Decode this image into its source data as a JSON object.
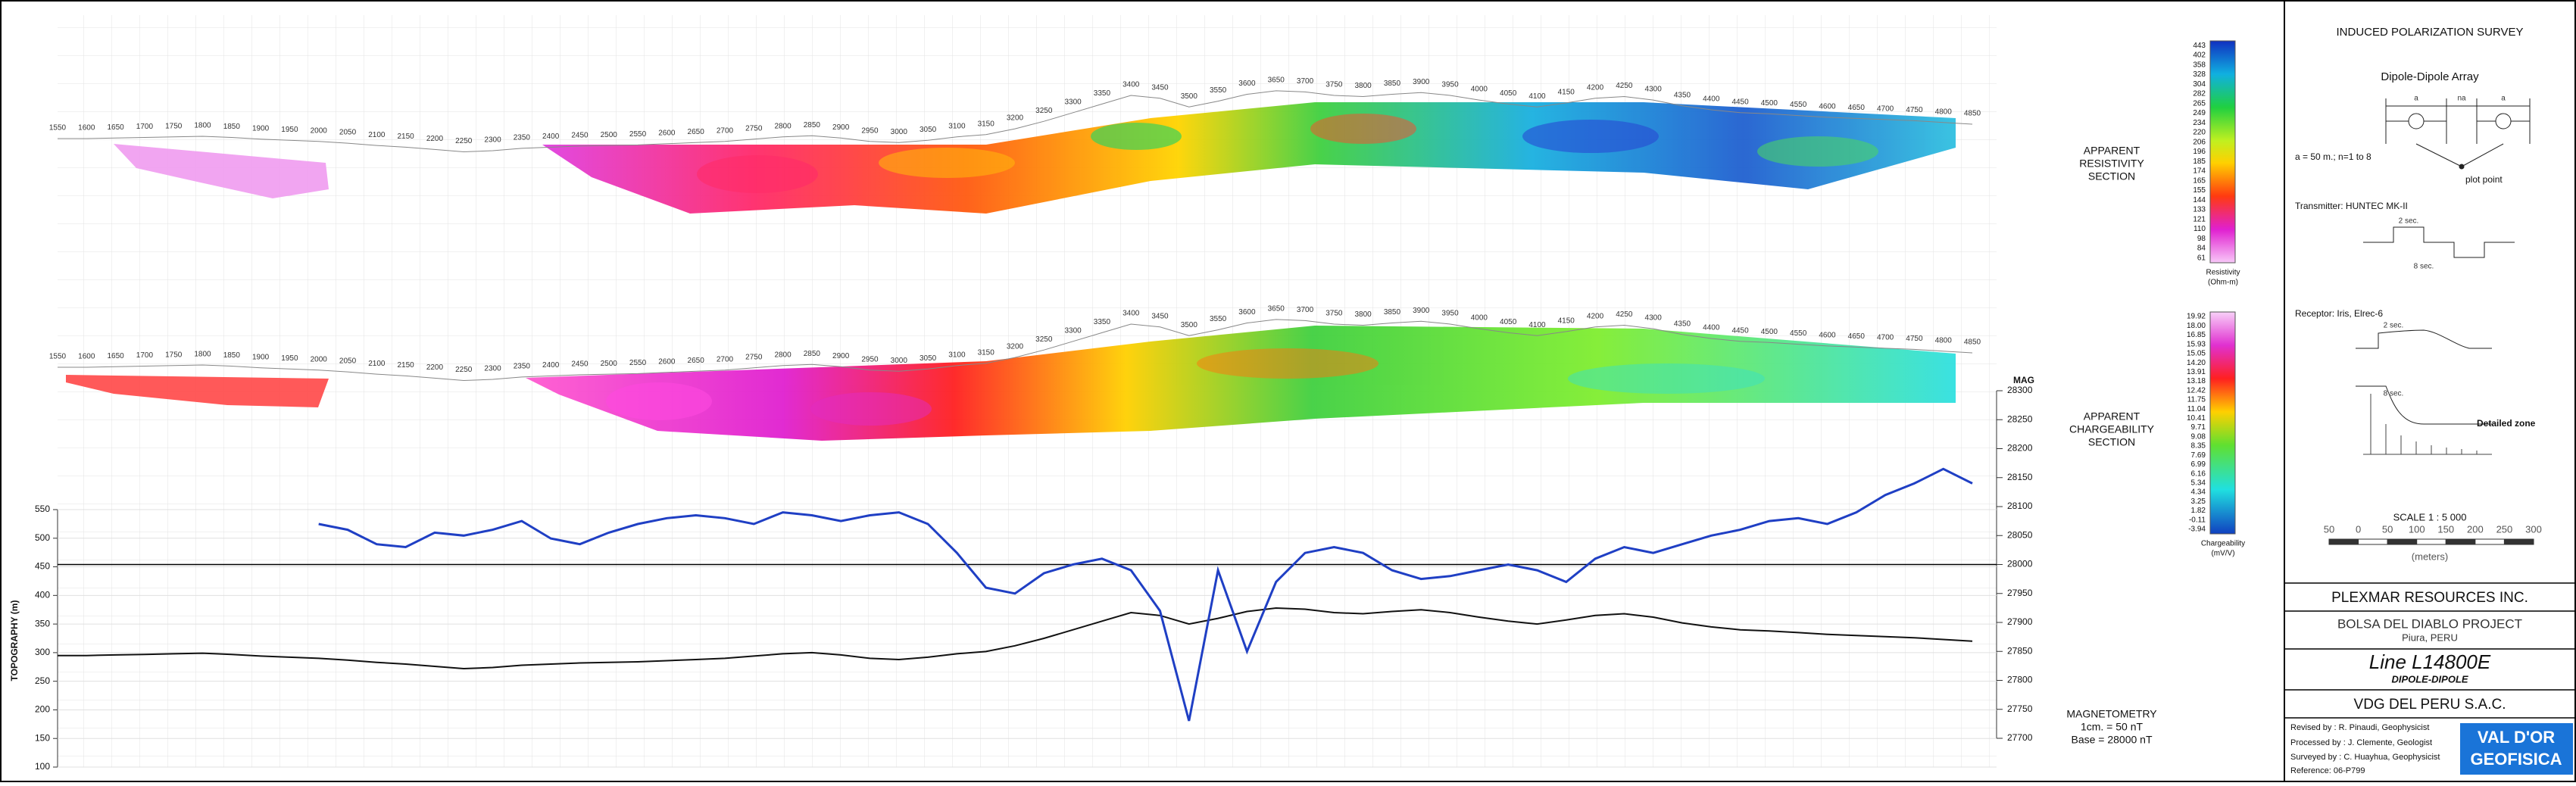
{
  "chart_data": {
    "type": "line",
    "x": [
      1550,
      1600,
      1650,
      1700,
      1750,
      1800,
      1850,
      1900,
      1950,
      2000,
      2050,
      2100,
      2150,
      2200,
      2250,
      2300,
      2350,
      2400,
      2450,
      2500,
      2550,
      2600,
      2650,
      2700,
      2750,
      2800,
      2850,
      2900,
      2950,
      3000,
      3050,
      3100,
      3150,
      3200,
      3250,
      3300,
      3350,
      3400,
      3450,
      3500,
      3550,
      3600,
      3650,
      3700,
      3750,
      3800,
      3850,
      3900,
      3950,
      4000,
      4050,
      4100,
      4150,
      4200,
      4250,
      4300,
      4350,
      4400,
      4450,
      4500,
      4550,
      4600,
      4650,
      4700,
      4750,
      4800,
      4850
    ],
    "xlim": [
      1550,
      4850
    ],
    "ylim": [
      100,
      550
    ],
    "yticks": [
      100,
      150,
      200,
      250,
      300,
      350,
      400,
      450,
      500,
      550
    ],
    "y2lim": [
      27700,
      28300
    ],
    "y2ticks": [
      27700,
      27750,
      27800,
      27850,
      27900,
      27950,
      28000,
      28050,
      28100,
      28150,
      28200,
      28250,
      28300
    ],
    "ylabel": "TOPOGRAPHY (m)",
    "y2label": "MAG",
    "grid": true,
    "base_nT": 28000,
    "series": [
      {
        "color": "#111111",
        "values": [
          295,
          295,
          296,
          297,
          298,
          299,
          297,
          294,
          292,
          290,
          287,
          283,
          280,
          276,
          272,
          274,
          278,
          280,
          282,
          283,
          284,
          286,
          288,
          290,
          294,
          298,
          300,
          296,
          290,
          288,
          292,
          298,
          302,
          312,
          325,
          340,
          355,
          370,
          365,
          350,
          360,
          372,
          378,
          376,
          370,
          368,
          372,
          375,
          370,
          362,
          355,
          350,
          357,
          365,
          368,
          362,
          352,
          345,
          340,
          338,
          335,
          332,
          330,
          328,
          326,
          323,
          320
        ]
      },
      {
        "color": "#1f3fc4",
        "axis": "y2",
        "values": [
          null,
          null,
          null,
          null,
          null,
          null,
          null,
          null,
          null,
          28070,
          28060,
          28035,
          28030,
          28055,
          28050,
          28060,
          28075,
          28045,
          28035,
          28055,
          28070,
          28080,
          28085,
          28080,
          28070,
          28090,
          28085,
          28075,
          28085,
          28090,
          28070,
          28020,
          27960,
          27950,
          27985,
          28000,
          28010,
          27990,
          27920,
          27730,
          27990,
          27850,
          27970,
          28020,
          28030,
          28020,
          27990,
          27975,
          27980,
          27990,
          28000,
          27990,
          27970,
          28010,
          28030,
          28020,
          28035,
          28050,
          28060,
          28075,
          28080,
          28070,
          28090,
          28120,
          28140,
          28165,
          28140
        ]
      }
    ]
  },
  "sections": {
    "resistivity": {
      "label": [
        "APPARENT",
        "RESISTIVITY",
        "SECTION"
      ],
      "scale": [
        "443",
        "402",
        "358",
        "328",
        "304",
        "282",
        "265",
        "249",
        "234",
        "220",
        "206",
        "196",
        "185",
        "174",
        "165",
        "155",
        "144",
        "133",
        "121",
        "110",
        "98",
        "84",
        "61"
      ],
      "unit": [
        "Resistivity",
        "(Ohm-m)"
      ]
    },
    "chargeability": {
      "label": [
        "APPARENT",
        "CHARGEABILITY",
        "SECTION"
      ],
      "scale": [
        "19.92",
        "18.00",
        "16.85",
        "15.93",
        "15.05",
        "14.20",
        "13.91",
        "13.18",
        "12.42",
        "11.75",
        "11.04",
        "10.41",
        "9.71",
        "9.08",
        "8.35",
        "7.69",
        "6.99",
        "6.16",
        "5.34",
        "4.34",
        "3.25",
        "1.82",
        "-0.11",
        "-3.94"
      ],
      "unit": [
        "Chargeability",
        "(mV/V)"
      ]
    },
    "magnetometry": {
      "label": [
        "MAGNETOMETRY",
        "1cm. = 50 nT",
        "Base = 28000 nT"
      ]
    }
  },
  "title_block": {
    "survey": "INDUCED POLARIZATION SURVEY",
    "array": "Dipole-Dipole Array",
    "array_labels": [
      "a",
      "na",
      "a"
    ],
    "spacing": "a = 50 m.; n=1 to 8",
    "plot_point": "plot point",
    "transmitter": "Transmitter: HUNTEC MK-II",
    "tx_on": "2 sec.",
    "tx_period": "8 sec.",
    "receptor": "Receptor: Iris, Elrec-6",
    "rx_on": "2 sec.",
    "rx_period": "8 sec.",
    "detailed_zone": "Detailed zone",
    "scale": "SCALE 1 : 5 000",
    "scale_ticks": [
      "50",
      "0",
      "50",
      "100",
      "150",
      "200",
      "250",
      "300"
    ],
    "scale_unit": "(meters)",
    "client": "PLEXMAR RESOURCES INC.",
    "project": "BOLSA DEL DIABLO PROJECT",
    "location": "Piura, PERU",
    "line": "Line L14800E",
    "method": "DIPOLE-DIPOLE",
    "contractor": "VDG DEL PERU S.A.C.",
    "credits": [
      "Revised by : R. Pinaudi, Geophysicist",
      "Processed by : J. Clemente, Geologist",
      "Surveyed by : C. Huayhua, Geophysicist",
      "Reference: 06-P799"
    ],
    "logo": [
      "VAL D'OR",
      "GEOFISICA"
    ]
  }
}
